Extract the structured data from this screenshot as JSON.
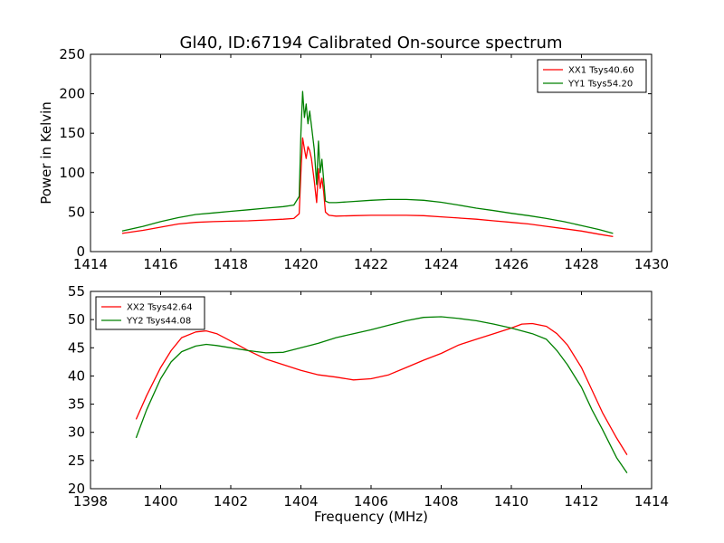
{
  "title": "Gl40, ID:67194 Calibrated On-source spectrum",
  "colors": {
    "xx": "#ff0000",
    "yy": "#008000"
  },
  "chart_data": [
    {
      "type": "line",
      "ylabel": "Power in Kelvin",
      "xlabel": "",
      "xlim": [
        1414,
        1430
      ],
      "ylim": [
        0,
        250
      ],
      "xticks": [
        "1414",
        "1416",
        "1418",
        "1420",
        "1422",
        "1424",
        "1426",
        "1428",
        "1430"
      ],
      "yticks": [
        "0",
        "50",
        "100",
        "150",
        "200",
        "250"
      ],
      "legend_position": "top-right",
      "grid": false,
      "series": [
        {
          "name": "XX1 Tsys40.60",
          "color": "#ff0000",
          "x": [
            1414.9,
            1415.5,
            1416.0,
            1416.5,
            1417.0,
            1417.5,
            1418.0,
            1418.5,
            1419.0,
            1419.5,
            1419.8,
            1419.95,
            1420.0,
            1420.05,
            1420.1,
            1420.15,
            1420.2,
            1420.25,
            1420.3,
            1420.38,
            1420.45,
            1420.5,
            1420.55,
            1420.6,
            1420.65,
            1420.7,
            1420.8,
            1421.0,
            1421.5,
            1422.0,
            1422.5,
            1423.0,
            1423.5,
            1424.0,
            1424.5,
            1425.0,
            1425.5,
            1426.0,
            1426.5,
            1427.0,
            1427.5,
            1428.0,
            1428.5,
            1428.9
          ],
          "y": [
            23,
            27,
            31,
            35,
            37,
            38,
            38.5,
            39,
            40,
            41,
            42,
            48,
            100,
            144,
            130,
            118,
            133,
            128,
            118,
            90,
            62,
            105,
            80,
            93,
            75,
            50,
            46,
            45,
            45.5,
            46,
            46,
            46,
            45.5,
            44,
            42.5,
            41,
            39,
            37,
            35,
            32,
            29,
            26,
            22,
            19
          ]
        },
        {
          "name": "YY1 Tsys54.20",
          "color": "#008000",
          "x": [
            1414.9,
            1415.5,
            1416.0,
            1416.5,
            1417.0,
            1417.5,
            1418.0,
            1418.5,
            1419.0,
            1419.5,
            1419.8,
            1419.95,
            1420.0,
            1420.05,
            1420.1,
            1420.15,
            1420.2,
            1420.25,
            1420.3,
            1420.38,
            1420.45,
            1420.5,
            1420.55,
            1420.6,
            1420.65,
            1420.7,
            1420.8,
            1421.0,
            1421.5,
            1422.0,
            1422.5,
            1423.0,
            1423.5,
            1424.0,
            1424.5,
            1425.0,
            1425.5,
            1426.0,
            1426.5,
            1427.0,
            1427.5,
            1428.0,
            1428.5,
            1428.9
          ],
          "y": [
            26,
            32,
            38,
            43,
            47,
            49,
            51,
            53,
            55,
            57,
            59,
            70,
            150,
            203,
            170,
            187,
            162,
            178,
            160,
            130,
            85,
            140,
            100,
            117,
            90,
            64,
            62,
            62,
            63.5,
            65,
            66,
            66,
            65,
            62.5,
            59,
            55,
            52,
            48.5,
            45.5,
            42,
            38,
            33,
            28,
            23
          ]
        }
      ]
    },
    {
      "type": "line",
      "ylabel": "",
      "xlabel": "Frequency (MHz)",
      "xlim": [
        1398,
        1414
      ],
      "ylim": [
        20,
        55
      ],
      "xticks": [
        "1398",
        "1400",
        "1402",
        "1404",
        "1406",
        "1408",
        "1410",
        "1412",
        "1414"
      ],
      "yticks": [
        "20",
        "25",
        "30",
        "35",
        "40",
        "45",
        "50",
        "55"
      ],
      "legend_position": "top-left",
      "grid": false,
      "series": [
        {
          "name": "XX2 Tsys42.64",
          "color": "#ff0000",
          "x": [
            1399.3,
            1399.6,
            1400.0,
            1400.3,
            1400.6,
            1401.0,
            1401.3,
            1401.6,
            1402.0,
            1402.5,
            1403.0,
            1403.5,
            1404.0,
            1404.5,
            1405.0,
            1405.5,
            1406.0,
            1406.5,
            1407.0,
            1407.5,
            1408.0,
            1408.5,
            1409.0,
            1409.5,
            1410.0,
            1410.3,
            1410.6,
            1411.0,
            1411.3,
            1411.6,
            1412.0,
            1412.3,
            1412.6,
            1413.0,
            1413.3
          ],
          "y": [
            32.3,
            36.5,
            41.5,
            44.5,
            46.8,
            47.8,
            48,
            47.5,
            46.2,
            44.5,
            43,
            42,
            41,
            40.2,
            39.8,
            39.3,
            39.5,
            40.2,
            41.5,
            42.8,
            44,
            45.5,
            46.5,
            47.5,
            48.5,
            49.2,
            49.3,
            48.8,
            47.5,
            45.5,
            41.5,
            37.5,
            33.5,
            29,
            26
          ]
        },
        {
          "name": "YY2 Tsys44.08",
          "color": "#008000",
          "x": [
            1399.3,
            1399.6,
            1400.0,
            1400.3,
            1400.6,
            1401.0,
            1401.3,
            1401.6,
            1402.0,
            1402.5,
            1403.0,
            1403.5,
            1404.0,
            1404.5,
            1405.0,
            1405.5,
            1406.0,
            1406.5,
            1407.0,
            1407.5,
            1408.0,
            1408.5,
            1409.0,
            1409.5,
            1410.0,
            1410.3,
            1410.6,
            1411.0,
            1411.3,
            1411.6,
            1412.0,
            1412.3,
            1412.6,
            1413.0,
            1413.3
          ],
          "y": [
            29,
            34,
            39.5,
            42.5,
            44.3,
            45.3,
            45.6,
            45.4,
            45,
            44.5,
            44.1,
            44.2,
            45,
            45.8,
            46.8,
            47.5,
            48.2,
            49,
            49.8,
            50.4,
            50.5,
            50.2,
            49.8,
            49.2,
            48.5,
            48,
            47.5,
            46.5,
            44.5,
            42,
            38,
            34,
            30.5,
            25.5,
            22.8
          ]
        }
      ]
    }
  ]
}
